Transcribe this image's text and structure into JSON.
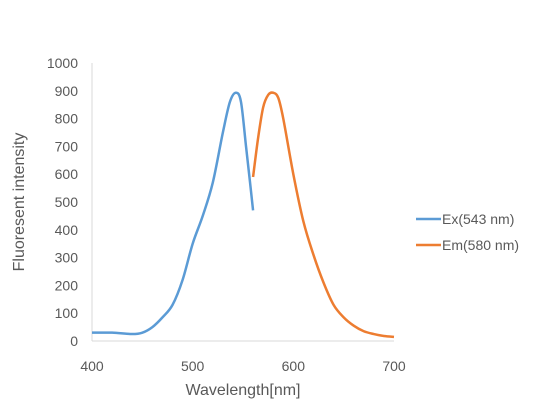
{
  "chart_data": {
    "type": "line",
    "xlabel": "Wavelength[nm]",
    "ylabel": "Fluoresent intensity",
    "xlim": [
      400,
      700
    ],
    "ylim": [
      0,
      1000
    ],
    "x_ticks": [
      400,
      500,
      600,
      700
    ],
    "y_ticks": [
      0,
      100,
      200,
      300,
      400,
      500,
      600,
      700,
      800,
      900,
      1000
    ],
    "grid": false,
    "legend_position": "right",
    "series": [
      {
        "name": "Ex(543 nm)",
        "color": "#5B9BD5",
        "points": [
          [
            400,
            30
          ],
          [
            420,
            30
          ],
          [
            440,
            25
          ],
          [
            450,
            30
          ],
          [
            460,
            50
          ],
          [
            470,
            85
          ],
          [
            480,
            130
          ],
          [
            490,
            220
          ],
          [
            500,
            350
          ],
          [
            510,
            450
          ],
          [
            520,
            570
          ],
          [
            530,
            750
          ],
          [
            537,
            860
          ],
          [
            543,
            893
          ],
          [
            548,
            860
          ],
          [
            553,
            700
          ],
          [
            557,
            570
          ],
          [
            560,
            470
          ]
        ]
      },
      {
        "name": "Em(580 nm)",
        "color": "#ED7D31",
        "points": [
          [
            560,
            590
          ],
          [
            565,
            730
          ],
          [
            570,
            840
          ],
          [
            575,
            885
          ],
          [
            580,
            893
          ],
          [
            585,
            875
          ],
          [
            590,
            800
          ],
          [
            600,
            600
          ],
          [
            610,
            430
          ],
          [
            620,
            310
          ],
          [
            630,
            210
          ],
          [
            640,
            130
          ],
          [
            650,
            85
          ],
          [
            660,
            55
          ],
          [
            670,
            35
          ],
          [
            680,
            25
          ],
          [
            690,
            18
          ],
          [
            700,
            15
          ]
        ]
      }
    ]
  }
}
